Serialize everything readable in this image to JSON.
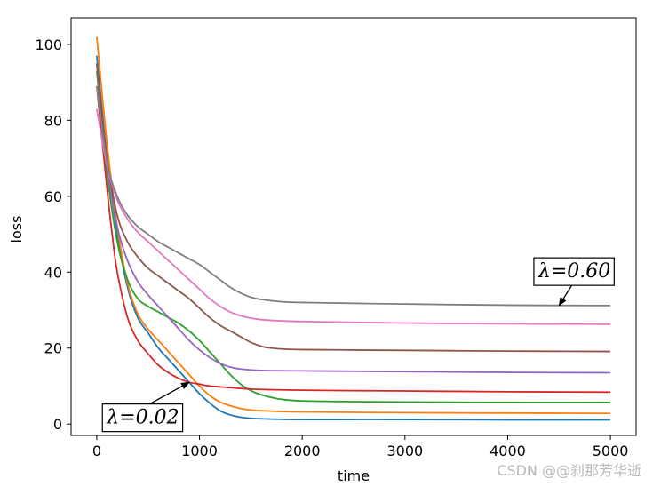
{
  "chart_data": {
    "type": "line",
    "xlabel": "time",
    "ylabel": "loss",
    "xlim": [
      -250,
      5250
    ],
    "ylim": [
      -3,
      107
    ],
    "x_ticks": [
      0,
      1000,
      2000,
      3000,
      4000,
      5000
    ],
    "y_ticks": [
      0,
      20,
      40,
      60,
      80,
      100
    ],
    "grid": false,
    "legend": "none",
    "series": [
      {
        "color": "#1f77b4",
        "points": [
          [
            0,
            97
          ],
          [
            100,
            70
          ],
          [
            200,
            50
          ],
          [
            300,
            36
          ],
          [
            400,
            28
          ],
          [
            500,
            24
          ],
          [
            600,
            20
          ],
          [
            700,
            17
          ],
          [
            800,
            14
          ],
          [
            900,
            11
          ],
          [
            1000,
            8
          ],
          [
            1100,
            5.5
          ],
          [
            1200,
            3.5
          ],
          [
            1300,
            2.4
          ],
          [
            1400,
            1.8
          ],
          [
            1500,
            1.5
          ],
          [
            1700,
            1.3
          ],
          [
            2000,
            1.2
          ],
          [
            3000,
            1.2
          ],
          [
            4000,
            1.1
          ],
          [
            5000,
            1.1
          ]
        ]
      },
      {
        "color": "#ff7f0e",
        "points": [
          [
            0,
            102
          ],
          [
            100,
            74
          ],
          [
            200,
            52
          ],
          [
            300,
            37
          ],
          [
            400,
            29
          ],
          [
            500,
            25
          ],
          [
            600,
            22
          ],
          [
            700,
            19
          ],
          [
            800,
            16
          ],
          [
            900,
            13
          ],
          [
            1000,
            10
          ],
          [
            1100,
            7.5
          ],
          [
            1200,
            5.8
          ],
          [
            1300,
            4.8
          ],
          [
            1400,
            4.1
          ],
          [
            1500,
            3.7
          ],
          [
            1700,
            3.4
          ],
          [
            2000,
            3.2
          ],
          [
            3000,
            3.0
          ],
          [
            4000,
            2.9
          ],
          [
            5000,
            2.8
          ]
        ]
      },
      {
        "color": "#2ca02c",
        "points": [
          [
            0,
            93
          ],
          [
            100,
            66
          ],
          [
            200,
            48
          ],
          [
            300,
            38
          ],
          [
            400,
            33
          ],
          [
            500,
            31
          ],
          [
            600,
            29.5
          ],
          [
            700,
            28
          ],
          [
            800,
            26.5
          ],
          [
            900,
            24.5
          ],
          [
            1000,
            22
          ],
          [
            1100,
            19
          ],
          [
            1200,
            16
          ],
          [
            1300,
            13
          ],
          [
            1400,
            10.5
          ],
          [
            1500,
            8.8
          ],
          [
            1600,
            7.7
          ],
          [
            1700,
            7.0
          ],
          [
            1800,
            6.5
          ],
          [
            2000,
            6.1
          ],
          [
            2500,
            5.9
          ],
          [
            3000,
            5.8
          ],
          [
            4000,
            5.7
          ],
          [
            5000,
            5.7
          ]
        ]
      },
      {
        "color": "#d62728",
        "points": [
          [
            0,
            89
          ],
          [
            100,
            62
          ],
          [
            150,
            50
          ],
          [
            200,
            40
          ],
          [
            300,
            28
          ],
          [
            400,
            22
          ],
          [
            500,
            18.5
          ],
          [
            600,
            15.5
          ],
          [
            700,
            13.5
          ],
          [
            800,
            12
          ],
          [
            900,
            11
          ],
          [
            1000,
            10.5
          ],
          [
            1100,
            10
          ],
          [
            1300,
            9.6
          ],
          [
            1500,
            9.2
          ],
          [
            2000,
            8.9
          ],
          [
            3000,
            8.7
          ],
          [
            4000,
            8.5
          ],
          [
            5000,
            8.4
          ]
        ]
      },
      {
        "color": "#9467bd",
        "points": [
          [
            0,
            95
          ],
          [
            100,
            68
          ],
          [
            200,
            52
          ],
          [
            300,
            43
          ],
          [
            400,
            37.5
          ],
          [
            500,
            34
          ],
          [
            600,
            31
          ],
          [
            700,
            28
          ],
          [
            800,
            25
          ],
          [
            900,
            22
          ],
          [
            1000,
            19.5
          ],
          [
            1100,
            17.5
          ],
          [
            1200,
            16
          ],
          [
            1300,
            15
          ],
          [
            1400,
            14.5
          ],
          [
            1600,
            14.1
          ],
          [
            2000,
            14.0
          ],
          [
            3000,
            13.8
          ],
          [
            4000,
            13.6
          ],
          [
            5000,
            13.5
          ]
        ]
      },
      {
        "color": "#8c564b",
        "points": [
          [
            0,
            95
          ],
          [
            100,
            70
          ],
          [
            200,
            55
          ],
          [
            300,
            48
          ],
          [
            400,
            44
          ],
          [
            500,
            41
          ],
          [
            600,
            39
          ],
          [
            700,
            37
          ],
          [
            800,
            35
          ],
          [
            900,
            33
          ],
          [
            1000,
            30.5
          ],
          [
            1100,
            28
          ],
          [
            1200,
            26
          ],
          [
            1300,
            24.5
          ],
          [
            1400,
            23
          ],
          [
            1500,
            21.5
          ],
          [
            1600,
            20.5
          ],
          [
            1700,
            20
          ],
          [
            2000,
            19.6
          ],
          [
            3000,
            19.4
          ],
          [
            4000,
            19.2
          ],
          [
            5000,
            19.1
          ]
        ]
      },
      {
        "color": "#e377c2",
        "points": [
          [
            0,
            83
          ],
          [
            100,
            68
          ],
          [
            200,
            59
          ],
          [
            300,
            54
          ],
          [
            400,
            50.5
          ],
          [
            500,
            48
          ],
          [
            600,
            45.5
          ],
          [
            700,
            43
          ],
          [
            800,
            40.5
          ],
          [
            900,
            38
          ],
          [
            1000,
            35.5
          ],
          [
            1100,
            33
          ],
          [
            1200,
            31
          ],
          [
            1300,
            29.5
          ],
          [
            1400,
            28.5
          ],
          [
            1600,
            27.5
          ],
          [
            2000,
            27.0
          ],
          [
            3000,
            26.6
          ],
          [
            4000,
            26.4
          ],
          [
            5000,
            26.3
          ]
        ]
      },
      {
        "color": "#7f7f7f",
        "points": [
          [
            0,
            89
          ],
          [
            100,
            69
          ],
          [
            200,
            60
          ],
          [
            300,
            55
          ],
          [
            400,
            52
          ],
          [
            500,
            50
          ],
          [
            600,
            48
          ],
          [
            700,
            46.5
          ],
          [
            800,
            45
          ],
          [
            900,
            43.5
          ],
          [
            1000,
            42
          ],
          [
            1100,
            40
          ],
          [
            1200,
            38
          ],
          [
            1300,
            36
          ],
          [
            1400,
            34.5
          ],
          [
            1500,
            33.4
          ],
          [
            1600,
            32.8
          ],
          [
            1800,
            32.2
          ],
          [
            2000,
            32.0
          ],
          [
            3000,
            31.6
          ],
          [
            4000,
            31.3
          ],
          [
            5000,
            31.2
          ]
        ]
      }
    ],
    "annotations": [
      {
        "text": "λ=0.02",
        "target": [
          900,
          11
        ],
        "text_at": [
          450,
          2
        ]
      },
      {
        "text": "λ=0.60",
        "target": [
          4500,
          31.2
        ],
        "text_at": [
          4650,
          40.5
        ]
      }
    ]
  },
  "watermark": "CSDN @@刹那芳华逝"
}
